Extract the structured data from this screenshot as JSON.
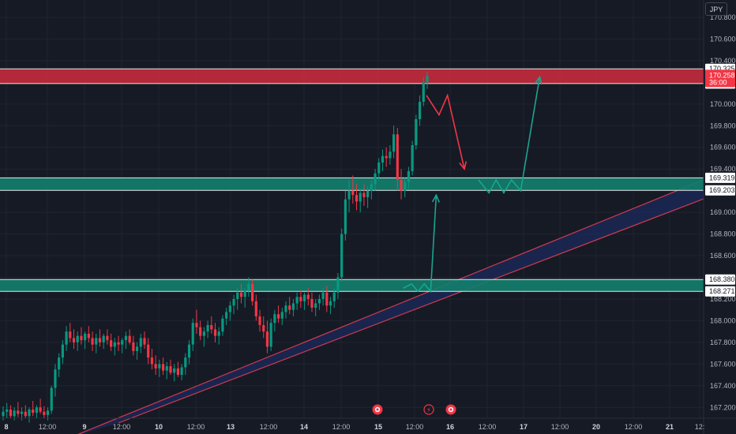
{
  "currency": "JPY",
  "colors": {
    "background": "#161a25",
    "grid": "#1f2431",
    "up": "#089981",
    "down": "#f23645",
    "resistance_zone": "#c42b3c",
    "support_zone": "#12806e",
    "channel_fill": "#1c2a5c",
    "channel_line": "#d03a4e",
    "projection_down": "#f23645",
    "projection_up": "#1aa58f"
  },
  "chart_data": {
    "type": "candlestick",
    "symbol_currency": "JPY",
    "timeframe": "15m",
    "ylim": [
      167.1,
      170.96
    ],
    "price_ticks": [
      "170.800",
      "170.600",
      "170.400",
      "170.200",
      "170.000",
      "169.800",
      "169.600",
      "169.400",
      "169.200",
      "169.000",
      "168.800",
      "168.600",
      "168.400",
      "168.200",
      "168.000",
      "167.800",
      "167.600",
      "167.400",
      "167.200"
    ],
    "time_ticks": [
      "8",
      "12:00",
      "9",
      "12:00",
      "10",
      "12:00",
      "13",
      "12:00",
      "14",
      "12:00",
      "15",
      "12:00",
      "16",
      "12:00",
      "17",
      "12:00",
      "20",
      "12:00",
      "21",
      "12:"
    ],
    "current_price": {
      "price": "170.258",
      "countdown": "36:00",
      "value": 170.258
    },
    "zones": [
      {
        "name": "resistance",
        "top": 170.325,
        "bottom": 170.189,
        "top_label": "170.325",
        "bottom_label": "170.189"
      },
      {
        "name": "support-upper",
        "top": 169.319,
        "bottom": 169.203,
        "top_label": "169.319",
        "bottom_label": "169.203"
      },
      {
        "name": "support-lower",
        "top": 168.38,
        "bottom": 168.271,
        "top_label": "168.380",
        "bottom_label": "168.271"
      }
    ],
    "channel": {
      "lower_line": {
        "from": {
          "t": 0.16,
          "p": 167.08
        },
        "to": {
          "t": 0.955,
          "p": 169.02
        }
      },
      "upper_line": {
        "from": {
          "t": 0.16,
          "p": 167.08
        },
        "to": {
          "t": 0.955,
          "p": 169.35
        }
      }
    },
    "projections": [
      {
        "color": "down",
        "points": [
          [
            0.606,
            170.08
          ],
          [
            0.624,
            169.9
          ],
          [
            0.636,
            170.08
          ],
          [
            0.66,
            169.4
          ]
        ],
        "arrow": true
      },
      {
        "color": "up",
        "points": [
          [
            0.68,
            169.3
          ],
          [
            0.695,
            169.18
          ],
          [
            0.705,
            169.3
          ],
          [
            0.716,
            169.18
          ],
          [
            0.727,
            169.3
          ],
          [
            0.74,
            169.2
          ],
          [
            0.767,
            170.25
          ]
        ],
        "arrow": true
      },
      {
        "color": "up",
        "points": [
          [
            0.573,
            168.3
          ],
          [
            0.585,
            168.34
          ],
          [
            0.594,
            168.27
          ],
          [
            0.603,
            168.34
          ],
          [
            0.612,
            168.27
          ],
          [
            0.62,
            169.16
          ]
        ],
        "arrow": true
      }
    ],
    "event_markers": [
      "event",
      "earnings",
      "event"
    ],
    "candles_ohlc": [
      [
        167.12,
        167.21,
        167.08,
        167.16
      ],
      [
        167.16,
        167.24,
        167.1,
        167.18
      ],
      [
        167.18,
        167.22,
        167.1,
        167.12
      ],
      [
        167.12,
        167.2,
        167.08,
        167.17
      ],
      [
        167.17,
        167.25,
        167.11,
        167.14
      ],
      [
        167.14,
        167.2,
        167.08,
        167.16
      ],
      [
        167.16,
        167.22,
        167.1,
        167.12
      ],
      [
        167.12,
        167.2,
        167.06,
        167.18
      ],
      [
        167.18,
        167.26,
        167.12,
        167.15
      ],
      [
        167.15,
        167.22,
        167.1,
        167.2
      ],
      [
        167.2,
        167.28,
        167.14,
        167.16
      ],
      [
        167.16,
        167.21,
        167.1,
        167.13
      ],
      [
        167.13,
        167.2,
        167.08,
        167.17
      ],
      [
        167.17,
        167.4,
        167.14,
        167.38
      ],
      [
        167.38,
        167.6,
        167.3,
        167.55
      ],
      [
        167.55,
        167.7,
        167.48,
        167.66
      ],
      [
        167.66,
        167.82,
        167.6,
        167.78
      ],
      [
        167.78,
        167.95,
        167.72,
        167.9
      ],
      [
        167.9,
        167.98,
        167.8,
        167.84
      ],
      [
        167.84,
        167.92,
        167.74,
        167.8
      ],
      [
        167.8,
        167.9,
        167.72,
        167.86
      ],
      [
        167.86,
        167.94,
        167.78,
        167.82
      ],
      [
        167.82,
        167.9,
        167.74,
        167.88
      ],
      [
        167.88,
        167.95,
        167.8,
        167.84
      ],
      [
        167.84,
        167.9,
        167.72,
        167.78
      ],
      [
        167.78,
        167.88,
        167.7,
        167.84
      ],
      [
        167.84,
        167.92,
        167.76,
        167.8
      ],
      [
        167.8,
        167.88,
        167.74,
        167.86
      ],
      [
        167.86,
        167.92,
        167.78,
        167.82
      ],
      [
        167.82,
        167.88,
        167.72,
        167.76
      ],
      [
        167.76,
        167.84,
        167.68,
        167.8
      ],
      [
        167.8,
        167.86,
        167.72,
        167.78
      ],
      [
        167.78,
        167.84,
        167.7,
        167.82
      ],
      [
        167.82,
        167.9,
        167.74,
        167.86
      ],
      [
        167.86,
        167.92,
        167.78,
        167.8
      ],
      [
        167.8,
        167.86,
        167.68,
        167.72
      ],
      [
        167.72,
        167.8,
        167.64,
        167.76
      ],
      [
        167.76,
        167.88,
        167.7,
        167.84
      ],
      [
        167.84,
        167.9,
        167.74,
        167.78
      ],
      [
        167.78,
        167.84,
        167.6,
        167.66
      ],
      [
        167.66,
        167.74,
        167.55,
        167.6
      ],
      [
        167.6,
        167.68,
        167.5,
        167.56
      ],
      [
        167.56,
        167.64,
        167.48,
        167.6
      ],
      [
        167.6,
        167.66,
        167.5,
        167.54
      ],
      [
        167.54,
        167.62,
        167.46,
        167.58
      ],
      [
        167.58,
        167.64,
        167.5,
        167.52
      ],
      [
        167.52,
        167.6,
        167.44,
        167.56
      ],
      [
        167.56,
        167.62,
        167.48,
        167.5
      ],
      [
        167.5,
        167.6,
        167.45,
        167.57
      ],
      [
        167.57,
        167.7,
        167.5,
        167.66
      ],
      [
        167.66,
        167.82,
        167.6,
        167.78
      ],
      [
        167.78,
        168.02,
        167.72,
        167.98
      ],
      [
        167.98,
        168.1,
        167.88,
        167.94
      ],
      [
        167.94,
        168.0,
        167.82,
        167.86
      ],
      [
        167.86,
        167.94,
        167.76,
        167.9
      ],
      [
        167.9,
        168.0,
        167.84,
        167.96
      ],
      [
        167.96,
        168.04,
        167.88,
        167.92
      ],
      [
        167.92,
        167.98,
        167.8,
        167.86
      ],
      [
        167.86,
        167.94,
        167.78,
        167.9
      ],
      [
        167.9,
        168.05,
        167.86,
        168.02
      ],
      [
        168.02,
        168.12,
        167.96,
        168.08
      ],
      [
        168.08,
        168.18,
        168.0,
        168.14
      ],
      [
        168.14,
        168.24,
        168.06,
        168.2
      ],
      [
        168.2,
        168.3,
        168.1,
        168.26
      ],
      [
        168.26,
        168.34,
        168.16,
        168.22
      ],
      [
        168.22,
        168.3,
        168.12,
        168.28
      ],
      [
        168.28,
        168.4,
        168.22,
        168.34
      ],
      [
        168.34,
        168.38,
        168.14,
        168.18
      ],
      [
        168.18,
        168.24,
        168.0,
        168.04
      ],
      [
        168.04,
        168.1,
        167.9,
        167.96
      ],
      [
        167.96,
        168.04,
        167.84,
        167.9
      ],
      [
        167.9,
        168.0,
        167.7,
        167.76
      ],
      [
        167.76,
        168.02,
        167.72,
        167.98
      ],
      [
        167.98,
        168.1,
        167.9,
        168.06
      ],
      [
        168.06,
        168.14,
        167.98,
        168.02
      ],
      [
        168.02,
        168.12,
        167.96,
        168.08
      ],
      [
        168.08,
        168.18,
        168.02,
        168.14
      ],
      [
        168.14,
        168.22,
        168.06,
        168.1
      ],
      [
        168.1,
        168.2,
        168.04,
        168.16
      ],
      [
        168.16,
        168.26,
        168.1,
        168.22
      ],
      [
        168.22,
        168.28,
        168.12,
        168.18
      ],
      [
        168.18,
        168.26,
        168.1,
        168.24
      ],
      [
        168.24,
        168.3,
        168.14,
        168.2
      ],
      [
        168.2,
        168.26,
        168.08,
        168.12
      ],
      [
        168.12,
        168.2,
        168.04,
        168.16
      ],
      [
        168.16,
        168.24,
        168.1,
        168.2
      ],
      [
        168.2,
        168.3,
        168.14,
        168.26
      ],
      [
        168.26,
        168.32,
        168.08,
        168.14
      ],
      [
        168.14,
        168.22,
        168.06,
        168.18
      ],
      [
        168.18,
        168.3,
        168.12,
        168.26
      ],
      [
        168.26,
        168.44,
        168.2,
        168.4
      ],
      [
        168.4,
        168.85,
        168.36,
        168.8
      ],
      [
        168.8,
        169.2,
        168.74,
        169.12
      ],
      [
        169.12,
        169.3,
        169.0,
        169.2
      ],
      [
        169.2,
        169.34,
        169.08,
        169.16
      ],
      [
        169.16,
        169.26,
        169.02,
        169.1
      ],
      [
        169.1,
        169.22,
        169.0,
        169.18
      ],
      [
        169.18,
        169.26,
        169.06,
        169.14
      ],
      [
        169.14,
        169.24,
        169.04,
        169.2
      ],
      [
        169.2,
        169.3,
        169.12,
        169.26
      ],
      [
        169.26,
        169.4,
        169.2,
        169.36
      ],
      [
        169.36,
        169.5,
        169.3,
        169.46
      ],
      [
        169.46,
        169.58,
        169.38,
        169.52
      ],
      [
        169.52,
        169.6,
        169.42,
        169.5
      ],
      [
        169.5,
        169.62,
        169.44,
        169.56
      ],
      [
        169.56,
        169.8,
        169.5,
        169.72
      ],
      [
        169.72,
        169.78,
        169.2,
        169.3
      ],
      [
        169.3,
        169.4,
        169.12,
        169.2
      ],
      [
        169.2,
        169.32,
        169.14,
        169.28
      ],
      [
        169.28,
        169.42,
        169.22,
        169.38
      ],
      [
        169.38,
        169.66,
        169.34,
        169.62
      ],
      [
        169.62,
        169.9,
        169.58,
        169.86
      ],
      [
        169.86,
        170.08,
        169.8,
        170.02
      ],
      [
        170.02,
        170.25,
        169.98,
        170.2
      ],
      [
        170.2,
        170.3,
        170.14,
        170.26
      ]
    ]
  }
}
